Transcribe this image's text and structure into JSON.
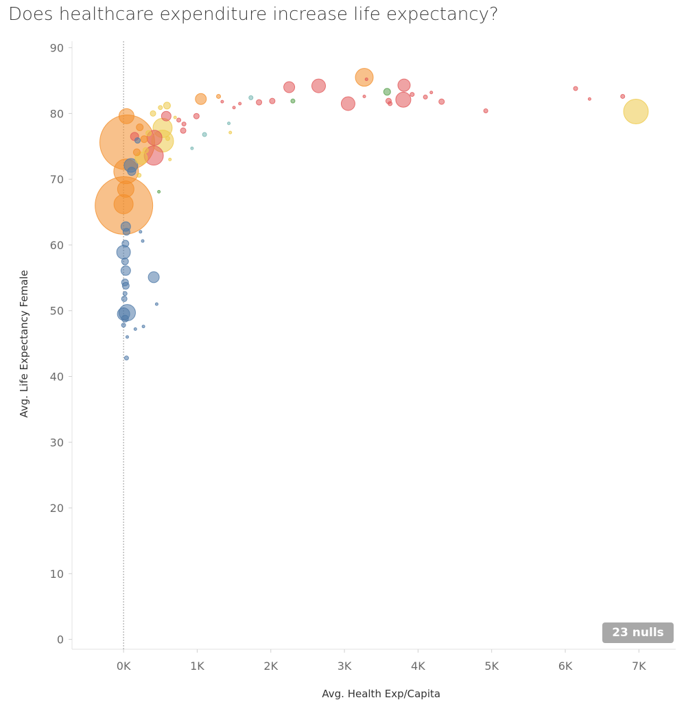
{
  "title": "Does healthcare expenditure increase life expectancy?",
  "nulls_label": "23 nulls",
  "colors": {
    "blue": "#4e79a7",
    "orange": "#f28e2b",
    "red": "#e15759",
    "yellow": "#edc948",
    "green": "#59a14f",
    "teal": "#76b7b2",
    "nulls_badge": "#a8a8a8",
    "reference_line": "#9a9a9a"
  },
  "chart_data": {
    "type": "scatter",
    "xlabel": "Avg. Health Exp/Capita",
    "ylabel": "Avg. Life Expectancy Female",
    "xlim": [
      -700,
      7500
    ],
    "ylim": [
      -1.5,
      91
    ],
    "xticks": [
      0,
      1000,
      2000,
      3000,
      4000,
      5000,
      6000,
      7000
    ],
    "xtick_labels": [
      "0K",
      "1K",
      "2K",
      "3K",
      "4K",
      "5K",
      "6K",
      "7K"
    ],
    "yticks": [
      0,
      10,
      20,
      30,
      40,
      50,
      60,
      70,
      80,
      90
    ],
    "ytick_labels": [
      "0",
      "10",
      "20",
      "30",
      "40",
      "50",
      "60",
      "70",
      "80",
      "90"
    ],
    "reference_line_x": 0,
    "grid": false,
    "marker_size": "population (bubble area)",
    "points": [
      {
        "x": 5,
        "y": 66,
        "r": 42,
        "color": "orange"
      },
      {
        "x": 50,
        "y": 75.6,
        "r": 40,
        "color": "orange"
      },
      {
        "x": 35,
        "y": 71.2,
        "r": 18,
        "color": "orange"
      },
      {
        "x": 0,
        "y": 66.2,
        "r": 14,
        "color": "orange"
      },
      {
        "x": 30,
        "y": 68.5,
        "r": 12,
        "color": "orange"
      },
      {
        "x": 40,
        "y": 79.6,
        "r": 11,
        "color": "orange"
      },
      {
        "x": 410,
        "y": 73.6,
        "r": 14,
        "color": "red"
      },
      {
        "x": 420,
        "y": 76.3,
        "r": 11,
        "color": "red"
      },
      {
        "x": 530,
        "y": 75.8,
        "r": 16,
        "color": "yellow"
      },
      {
        "x": 530,
        "y": 77.8,
        "r": 14,
        "color": "yellow"
      },
      {
        "x": 6960,
        "y": 80.3,
        "r": 18,
        "color": "yellow"
      },
      {
        "x": 3270,
        "y": 85.5,
        "r": 13,
        "color": "orange"
      },
      {
        "x": 2650,
        "y": 84.2,
        "r": 10,
        "color": "red"
      },
      {
        "x": 2250,
        "y": 84,
        "r": 8,
        "color": "red"
      },
      {
        "x": 3050,
        "y": 81.5,
        "r": 10,
        "color": "red"
      },
      {
        "x": 3810,
        "y": 84.3,
        "r": 9,
        "color": "red"
      },
      {
        "x": 3800,
        "y": 82.1,
        "r": 11,
        "color": "red"
      },
      {
        "x": 1050,
        "y": 82.2,
        "r": 8,
        "color": "orange"
      },
      {
        "x": 3580,
        "y": 83.3,
        "r": 5,
        "color": "green"
      },
      {
        "x": 3600,
        "y": 81.9,
        "r": 4,
        "color": "red"
      },
      {
        "x": 4320,
        "y": 81.8,
        "r": 4,
        "color": "red"
      },
      {
        "x": 4100,
        "y": 82.5,
        "r": 3,
        "color": "red"
      },
      {
        "x": 4180,
        "y": 83.2,
        "r": 2,
        "color": "red"
      },
      {
        "x": 3920,
        "y": 82.9,
        "r": 3,
        "color": "red"
      },
      {
        "x": 3270,
        "y": 82.6,
        "r": 2,
        "color": "red"
      },
      {
        "x": 3300,
        "y": 85.2,
        "r": 2,
        "color": "red"
      },
      {
        "x": 3620,
        "y": 81.5,
        "r": 3,
        "color": "red"
      },
      {
        "x": 2020,
        "y": 81.9,
        "r": 4,
        "color": "red"
      },
      {
        "x": 1840,
        "y": 81.7,
        "r": 4,
        "color": "red"
      },
      {
        "x": 2300,
        "y": 81.9,
        "r": 3,
        "color": "green"
      },
      {
        "x": 1730,
        "y": 82.4,
        "r": 3,
        "color": "teal"
      },
      {
        "x": 1580,
        "y": 81.5,
        "r": 2,
        "color": "red"
      },
      {
        "x": 1500,
        "y": 80.9,
        "r": 2,
        "color": "red"
      },
      {
        "x": 1340,
        "y": 81.8,
        "r": 2,
        "color": "red"
      },
      {
        "x": 1290,
        "y": 82.6,
        "r": 3,
        "color": "orange"
      },
      {
        "x": 1430,
        "y": 78.5,
        "r": 2,
        "color": "teal"
      },
      {
        "x": 1450,
        "y": 77.1,
        "r": 2,
        "color": "yellow"
      },
      {
        "x": 1100,
        "y": 76.8,
        "r": 3,
        "color": "teal"
      },
      {
        "x": 6140,
        "y": 83.8,
        "r": 3,
        "color": "red"
      },
      {
        "x": 6780,
        "y": 82.6,
        "r": 3,
        "color": "red"
      },
      {
        "x": 6330,
        "y": 82.2,
        "r": 2,
        "color": "red"
      },
      {
        "x": 4920,
        "y": 80.4,
        "r": 3,
        "color": "red"
      },
      {
        "x": 990,
        "y": 79.6,
        "r": 4,
        "color": "red"
      },
      {
        "x": 820,
        "y": 78.4,
        "r": 3,
        "color": "red"
      },
      {
        "x": 810,
        "y": 77.4,
        "r": 4,
        "color": "red"
      },
      {
        "x": 750,
        "y": 79,
        "r": 3,
        "color": "red"
      },
      {
        "x": 700,
        "y": 79.4,
        "r": 2,
        "color": "yellow"
      },
      {
        "x": 590,
        "y": 81.2,
        "r": 5,
        "color": "yellow"
      },
      {
        "x": 580,
        "y": 79.6,
        "r": 7,
        "color": "red"
      },
      {
        "x": 500,
        "y": 80.9,
        "r": 3,
        "color": "yellow"
      },
      {
        "x": 400,
        "y": 80,
        "r": 4,
        "color": "yellow"
      },
      {
        "x": 630,
        "y": 73,
        "r": 2,
        "color": "yellow"
      },
      {
        "x": 930,
        "y": 74.7,
        "r": 2,
        "color": "teal"
      },
      {
        "x": 600,
        "y": 76.2,
        "r": 3,
        "color": "yellow"
      },
      {
        "x": 220,
        "y": 77.9,
        "r": 5,
        "color": "orange"
      },
      {
        "x": 150,
        "y": 76.5,
        "r": 6,
        "color": "red"
      },
      {
        "x": 280,
        "y": 76.1,
        "r": 5,
        "color": "orange"
      },
      {
        "x": 190,
        "y": 75.9,
        "r": 4,
        "color": "blue"
      },
      {
        "x": 340,
        "y": 77,
        "r": 4,
        "color": "yellow"
      },
      {
        "x": 300,
        "y": 74.4,
        "r": 4,
        "color": "yellow"
      },
      {
        "x": 240,
        "y": 73.2,
        "r": 9,
        "color": "yellow"
      },
      {
        "x": 180,
        "y": 74.1,
        "r": 5,
        "color": "orange"
      },
      {
        "x": 100,
        "y": 72.1,
        "r": 10,
        "color": "blue"
      },
      {
        "x": 110,
        "y": 71.2,
        "r": 6,
        "color": "blue"
      },
      {
        "x": 210,
        "y": 70.6,
        "r": 3,
        "color": "yellow"
      },
      {
        "x": 480,
        "y": 68.1,
        "r": 2,
        "color": "green"
      },
      {
        "x": 30,
        "y": 62.8,
        "r": 7,
        "color": "blue"
      },
      {
        "x": 40,
        "y": 62,
        "r": 5,
        "color": "blue"
      },
      {
        "x": 230,
        "y": 62,
        "r": 2,
        "color": "blue"
      },
      {
        "x": 260,
        "y": 60.6,
        "r": 2,
        "color": "blue"
      },
      {
        "x": 25,
        "y": 60.2,
        "r": 5,
        "color": "blue"
      },
      {
        "x": 0,
        "y": 58.9,
        "r": 10,
        "color": "blue"
      },
      {
        "x": 20,
        "y": 57.5,
        "r": 5,
        "color": "blue"
      },
      {
        "x": 30,
        "y": 56.1,
        "r": 7,
        "color": "blue"
      },
      {
        "x": 410,
        "y": 55.1,
        "r": 8,
        "color": "blue"
      },
      {
        "x": 20,
        "y": 54.3,
        "r": 5,
        "color": "blue"
      },
      {
        "x": 30,
        "y": 53.8,
        "r": 5,
        "color": "blue"
      },
      {
        "x": 20,
        "y": 52.6,
        "r": 3,
        "color": "blue"
      },
      {
        "x": 10,
        "y": 51.8,
        "r": 4,
        "color": "blue"
      },
      {
        "x": 450,
        "y": 51,
        "r": 2,
        "color": "blue"
      },
      {
        "x": 50,
        "y": 49.7,
        "r": 12,
        "color": "blue"
      },
      {
        "x": 0,
        "y": 49.5,
        "r": 9,
        "color": "blue"
      },
      {
        "x": 20,
        "y": 48.8,
        "r": 5,
        "color": "blue"
      },
      {
        "x": 0,
        "y": 47.8,
        "r": 3,
        "color": "blue"
      },
      {
        "x": 270,
        "y": 47.6,
        "r": 2,
        "color": "blue"
      },
      {
        "x": 160,
        "y": 47.2,
        "r": 2,
        "color": "blue"
      },
      {
        "x": 50,
        "y": 46,
        "r": 2,
        "color": "blue"
      },
      {
        "x": 40,
        "y": 42.8,
        "r": 3,
        "color": "blue"
      }
    ]
  }
}
